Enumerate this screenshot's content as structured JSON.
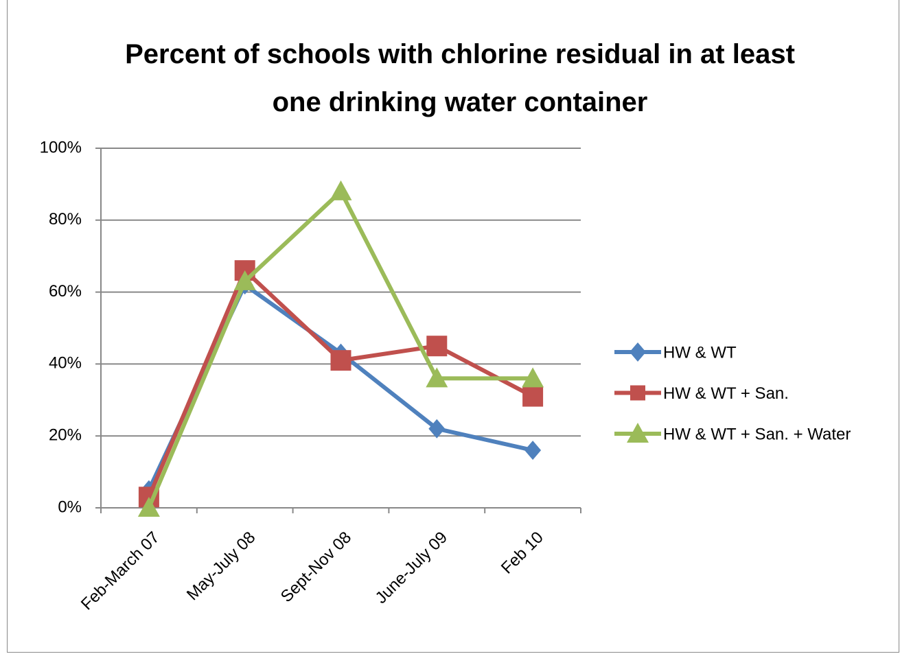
{
  "chart_data": {
    "type": "line",
    "title": "Percent of schools with chlorine residual in at least one drinking water container",
    "categories": [
      "Feb-March 07",
      "May-July 08",
      "Sept-Nov 08",
      "June-July 09",
      "Feb 10"
    ],
    "series": [
      {
        "name": "HW & WT",
        "color": "#4f81bd",
        "marker": "diamond",
        "values": [
          5,
          62,
          43,
          22,
          16
        ]
      },
      {
        "name": "HW & WT + San.",
        "color": "#c0504d",
        "marker": "square",
        "values": [
          3,
          66,
          41,
          45,
          31
        ]
      },
      {
        "name": "HW & WT + San. + Water",
        "color": "#9bbb59",
        "marker": "triangle",
        "values": [
          0,
          63,
          88,
          36,
          36
        ]
      }
    ],
    "ylim": [
      0,
      100
    ],
    "yticks": [
      {
        "value": 0,
        "label": "0%"
      },
      {
        "value": 20,
        "label": "20%"
      },
      {
        "value": 40,
        "label": "40%"
      },
      {
        "value": 60,
        "label": "60%"
      },
      {
        "value": 80,
        "label": "80%"
      },
      {
        "value": 100,
        "label": "100%"
      }
    ],
    "grid": true,
    "legend": "right"
  }
}
